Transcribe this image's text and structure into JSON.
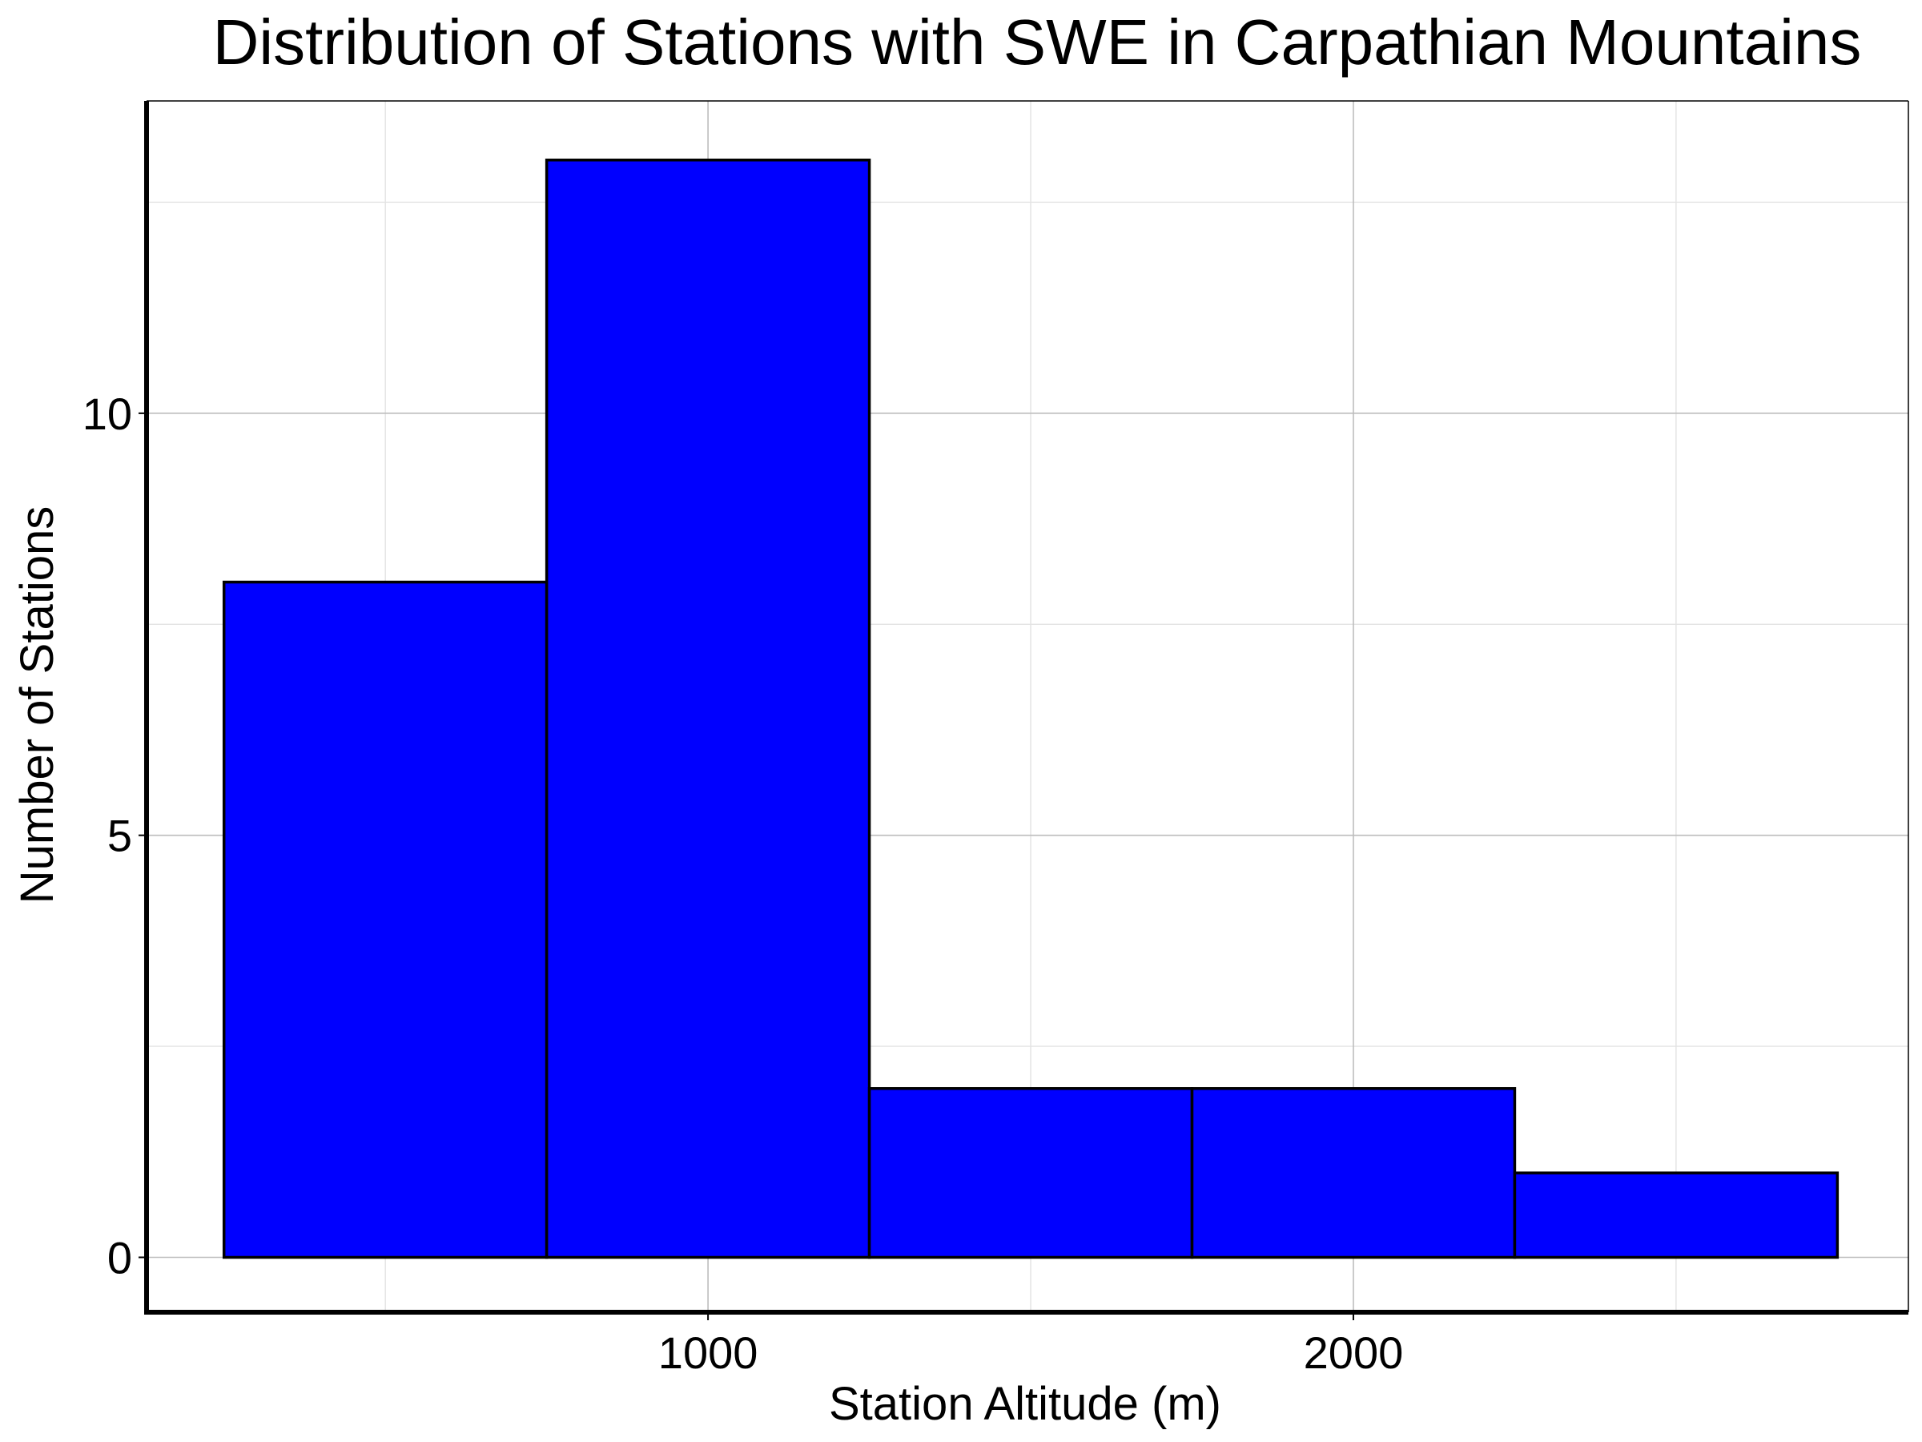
{
  "chart_data": {
    "type": "bar",
    "title": "Distribution of Stations with SWE in Carpathian Mountains",
    "xlabel": "Station Altitude (m)",
    "ylabel": "Number of Stations",
    "bins": [
      {
        "x0": 250,
        "x1": 750,
        "count": 8
      },
      {
        "x0": 750,
        "x1": 1250,
        "count": 13
      },
      {
        "x0": 1250,
        "x1": 1750,
        "count": 2
      },
      {
        "x0": 1750,
        "x1": 2250,
        "count": 2
      },
      {
        "x0": 2250,
        "x1": 2750,
        "count": 1
      }
    ],
    "xlim": [
      130,
      2860
    ],
    "ylim": [
      -0.65,
      13.7
    ],
    "x_ticks": [
      1000,
      2000
    ],
    "x_minor_ticks": [
      500,
      1500,
      2500
    ],
    "y_ticks": [
      0,
      5,
      10
    ],
    "y_minor_ticks": [
      2.5,
      7.5,
      12.5
    ],
    "grid": true,
    "bar_color": "#0000ff",
    "edge_color": "#000000"
  }
}
